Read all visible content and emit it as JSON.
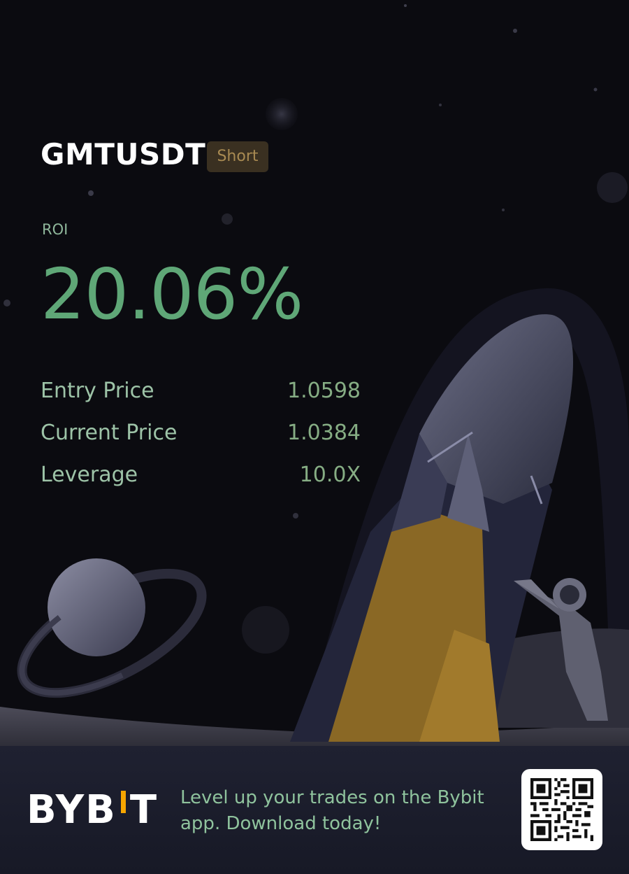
{
  "position": {
    "symbol": "GMTUSDT",
    "side": "Short"
  },
  "roi": {
    "label": "ROI",
    "value": "20.06%"
  },
  "stats": [
    {
      "label": "Entry Price",
      "value": "1.0598"
    },
    {
      "label": "Current Price",
      "value": "1.0384"
    },
    {
      "label": "Leverage",
      "value": "10.0X"
    }
  ],
  "footer": {
    "brand_left": "BYB",
    "brand_right": "T",
    "tagline": "Level up your trades on the Bybit app. Download today!",
    "qr_icon": "qr-code-icon"
  },
  "colors": {
    "roi_green": "#5fa777",
    "label_green": "#9dc3a7",
    "badge_bg": "#3a3021",
    "badge_text": "#a88a52",
    "brand_accent": "#f7a600",
    "background": "#0b0b10"
  },
  "illustration": {
    "icons": [
      "rocket-icon",
      "planet-icon",
      "astronaut-icon",
      "moon-surface-icon",
      "stars-icon"
    ]
  }
}
